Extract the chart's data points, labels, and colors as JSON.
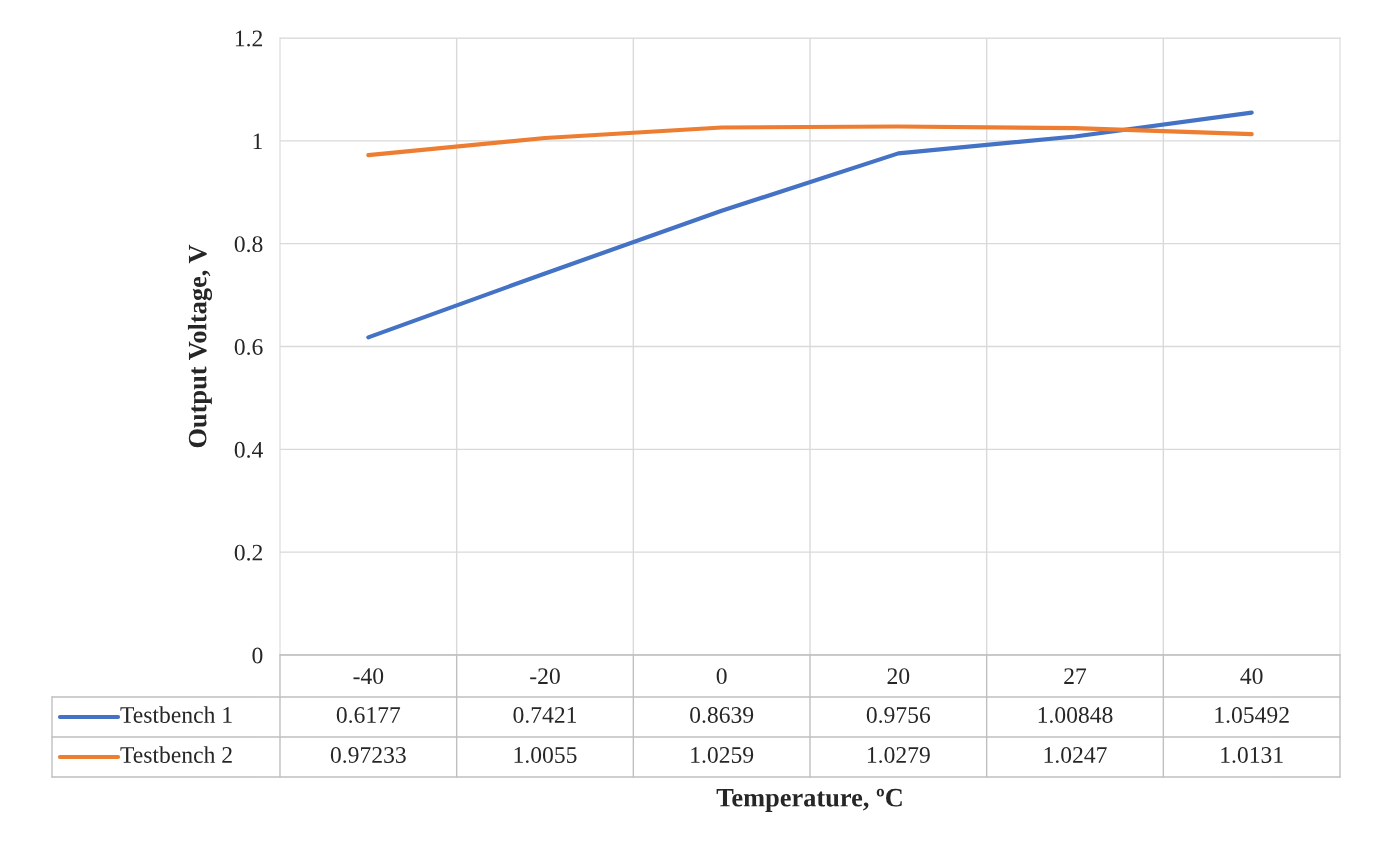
{
  "chart_data": {
    "type": "line",
    "xlabel": "Temperature, ºC",
    "ylabel": "Output Voltage, V",
    "categories": [
      "-40",
      "-20",
      "0",
      "20",
      "27",
      "40"
    ],
    "series": [
      {
        "name": "Testbench 1",
        "color": "#4472c4",
        "values": [
          0.6177,
          0.7421,
          0.8639,
          0.9756,
          1.00848,
          1.05492
        ]
      },
      {
        "name": "Testbench 2",
        "color": "#ed7d31",
        "values": [
          0.97233,
          1.0055,
          1.0259,
          1.0279,
          1.0247,
          1.0131
        ]
      }
    ],
    "ylim": [
      0,
      1.2
    ],
    "yticks": [
      0,
      0.2,
      0.4,
      0.6,
      0.8,
      1,
      1.2
    ],
    "grid": true,
    "legend": "bottom",
    "data_labels": true,
    "line_style": "solid"
  }
}
